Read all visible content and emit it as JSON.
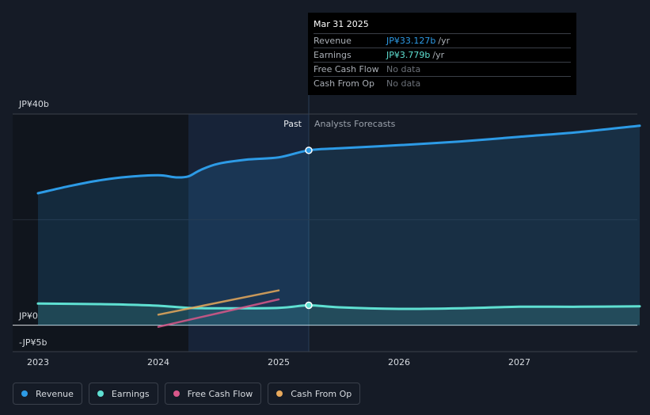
{
  "tooltip": {
    "date": "Mar 31 2025",
    "rows": [
      {
        "label": "Revenue",
        "value": "JP¥33.127b",
        "unit": "/yr",
        "color": "#2d9be6"
      },
      {
        "label": "Earnings",
        "value": "JP¥3.779b",
        "unit": "/yr",
        "color": "#5fe0d2"
      },
      {
        "label": "Free Cash Flow",
        "value": "No data",
        "unit": "",
        "color": "#6c7179"
      },
      {
        "label": "Cash From Op",
        "value": "No data",
        "unit": "",
        "color": "#6c7179"
      }
    ]
  },
  "sections": {
    "past": "Past",
    "forecast": "Analysts Forecasts"
  },
  "legend": [
    {
      "label": "Revenue",
      "color": "#2d9be6"
    },
    {
      "label": "Earnings",
      "color": "#5fe0d2"
    },
    {
      "label": "Free Cash Flow",
      "color": "#d9578a"
    },
    {
      "label": "Cash From Op",
      "color": "#e8a95c"
    }
  ],
  "chart_data": {
    "type": "line",
    "y_unit": "JP¥ billions",
    "ylim": [
      -5,
      40
    ],
    "ytick_labels": [
      {
        "value": 40,
        "label": "JP¥40b"
      },
      {
        "value": 0,
        "label": "JP¥0"
      },
      {
        "value": -5,
        "label": "-JP¥5b"
      }
    ],
    "xlim": [
      2023.0,
      2028.0
    ],
    "xtick_labels": [
      {
        "value": 2023.0,
        "label": "2023"
      },
      {
        "value": 2024.0,
        "label": "2024"
      },
      {
        "value": 2025.0,
        "label": "2025"
      },
      {
        "value": 2026.0,
        "label": "2026"
      },
      {
        "value": 2027.0,
        "label": "2027"
      }
    ],
    "past_start": 2024.25,
    "forecast_start": 2025.25,
    "grid": true,
    "series": [
      {
        "name": "Revenue",
        "color": "#2d9be6",
        "filled": true,
        "points": [
          [
            2023.0,
            25.0
          ],
          [
            2023.25,
            26.3
          ],
          [
            2023.5,
            27.4
          ],
          [
            2023.75,
            28.1
          ],
          [
            2024.0,
            28.4
          ],
          [
            2024.15,
            28.0
          ],
          [
            2024.25,
            28.2
          ],
          [
            2024.35,
            29.4
          ],
          [
            2024.5,
            30.6
          ],
          [
            2024.75,
            31.4
          ],
          [
            2025.0,
            31.8
          ],
          [
            2025.25,
            33.127
          ],
          [
            2025.5,
            33.5
          ],
          [
            2026.0,
            34.1
          ],
          [
            2026.5,
            34.8
          ],
          [
            2027.0,
            35.7
          ],
          [
            2027.5,
            36.6
          ],
          [
            2028.0,
            37.8
          ]
        ]
      },
      {
        "name": "Earnings",
        "color": "#5fe0d2",
        "filled": true,
        "points": [
          [
            2023.0,
            4.1
          ],
          [
            2023.5,
            4.0
          ],
          [
            2023.75,
            3.9
          ],
          [
            2024.0,
            3.7
          ],
          [
            2024.25,
            3.3
          ],
          [
            2024.5,
            3.2
          ],
          [
            2025.0,
            3.3
          ],
          [
            2025.25,
            3.779
          ],
          [
            2025.5,
            3.4
          ],
          [
            2026.0,
            3.1
          ],
          [
            2026.5,
            3.2
          ],
          [
            2027.0,
            3.5
          ],
          [
            2027.5,
            3.5
          ],
          [
            2028.0,
            3.6
          ]
        ]
      },
      {
        "name": "Free Cash Flow",
        "color": "#d9578a",
        "filled": false,
        "points": [
          [
            2024.0,
            -0.3
          ],
          [
            2025.0,
            4.9
          ]
        ]
      },
      {
        "name": "Cash From Op",
        "color": "#e8a95c",
        "filled": false,
        "points": [
          [
            2024.0,
            2.0
          ],
          [
            2025.0,
            6.6
          ]
        ]
      }
    ],
    "highlight_points": [
      {
        "series": "Revenue",
        "x": 2025.25,
        "y": 33.127
      },
      {
        "series": "Earnings",
        "x": 2025.25,
        "y": 3.779
      }
    ]
  }
}
